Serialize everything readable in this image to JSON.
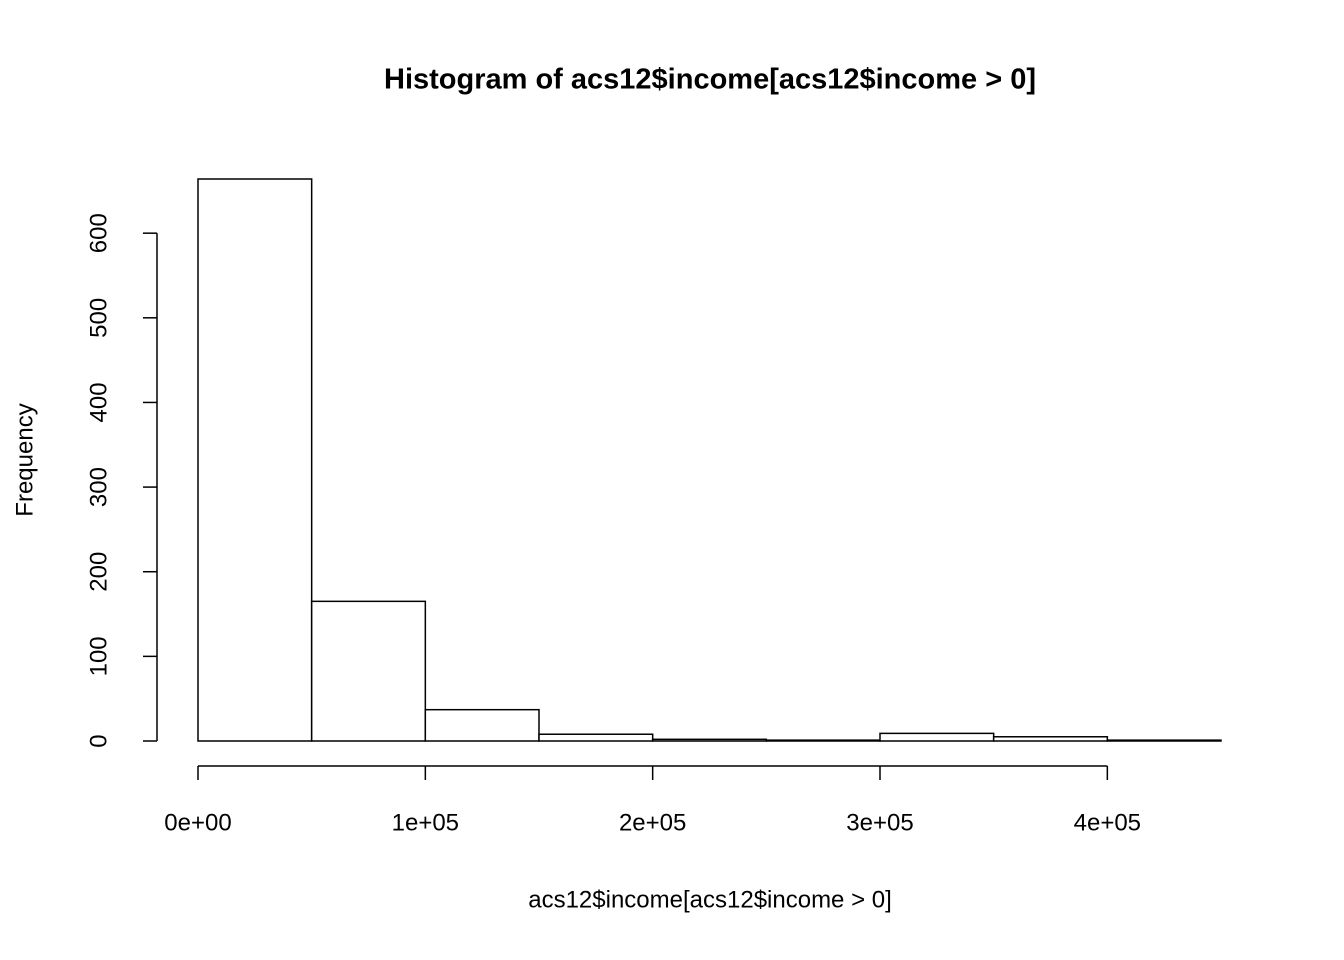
{
  "chart_data": {
    "type": "histogram",
    "title": "Histogram of acs12$income[acs12$income > 0]",
    "x_label": "acs12$income[acs12$income > 0]",
    "y_label": "Frequency",
    "bins": [
      0,
      50000,
      100000,
      150000,
      200000,
      250000,
      300000,
      350000,
      400000,
      450000
    ],
    "counts": [
      664,
      165,
      37,
      8,
      2,
      1,
      9,
      5,
      1
    ],
    "color": "#ffffff",
    "edge_color": "#000000",
    "xlim": [
      0,
      450000
    ],
    "ylim": [
      0,
      664
    ],
    "xticks": [
      {
        "value": 0,
        "label": "0e+00"
      },
      {
        "value": 100000,
        "label": "1e+05"
      },
      {
        "value": 200000,
        "label": "2e+05"
      },
      {
        "value": 300000,
        "label": "3e+05"
      },
      {
        "value": 400000,
        "label": "4e+05"
      }
    ],
    "yticks": [
      0,
      100,
      200,
      300,
      400,
      500,
      600
    ]
  }
}
